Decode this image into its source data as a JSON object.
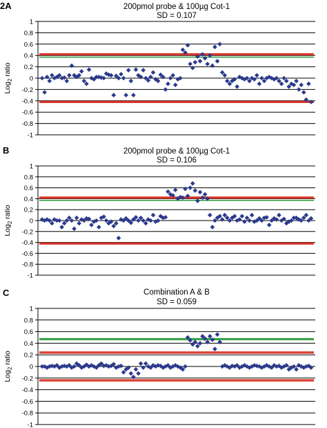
{
  "chart_data": [
    {
      "type": "scatter",
      "panel_label": "2A",
      "title": "200pmol probe & 100µg Cot-1",
      "subtitle": "SD = 0.107",
      "ylabel_main": "Log",
      "ylabel_sub": "2",
      "ylabel_tail": " ratio",
      "ylim": [
        -1,
        1
      ],
      "yticks": [
        "1",
        "0.8",
        "0.6",
        "0.4",
        "0.2",
        "0",
        "-0.2",
        "-0.4",
        "-0.6",
        "-0.8",
        "-1"
      ],
      "grid": true,
      "marker_color": "#2b3a8c",
      "threshold_lines": [
        {
          "value": 0.43,
          "color": "#d62b1f"
        },
        {
          "value": 0.41,
          "color": "#d62b1f"
        },
        {
          "value": 0.37,
          "color": "#3aa04a"
        },
        {
          "value": -0.41,
          "color": "#d62b1f"
        },
        {
          "value": -0.43,
          "color": "#d62b1f"
        }
      ],
      "values": [
        0.0,
        -0.25,
        0.02,
        -0.05,
        0.05,
        0.0,
        0.02,
        0.05,
        0.0,
        0.01,
        -0.05,
        0.05,
        0.22,
        0.05,
        0.02,
        0.05,
        0.12,
        -0.05,
        -0.1,
        0.15,
        0.0,
        -0.02,
        0.02,
        0.02,
        0.01,
        0.0,
        0.08,
        0.06,
        0.05,
        -0.3,
        0.04,
        0.0,
        0.07,
        0.0,
        -0.3,
        0.14,
        -0.05,
        -0.3,
        0.15,
        0.05,
        0.02,
        0.14,
        0.0,
        -0.04,
        0.02,
        0.1,
        -0.02,
        -0.05,
        0.06,
        0.02,
        -0.2,
        -0.1,
        0.0,
        0.05,
        -0.12,
        -0.02,
        0.0,
        0.5,
        0.45,
        0.58,
        0.25,
        0.18,
        0.28,
        0.38,
        0.3,
        0.42,
        0.35,
        0.25,
        0.4,
        0.22,
        0.55,
        0.3,
        0.6,
        0.1,
        0.05,
        -0.05,
        -0.1,
        -0.05,
        -0.02,
        -0.15,
        0.02,
        0.0,
        -0.02,
        0.0,
        -0.05,
        0.0,
        -0.02,
        0.05,
        -0.1,
        0.0,
        -0.05,
        0.0,
        0.02,
        0.0,
        -0.02,
        0.0,
        -0.05,
        -0.1,
        0.0,
        -0.05,
        -0.15,
        -0.1,
        -0.12,
        -0.05,
        -0.2,
        -0.12,
        -0.25,
        -0.38,
        -0.1,
        -0.42
      ]
    },
    {
      "type": "scatter",
      "panel_label": "B",
      "title": "200pmol probe & 100µg Cot-1",
      "subtitle": "SD = 0.106",
      "ylabel_main": "Log",
      "ylabel_sub": "2",
      "ylabel_tail": " ratio",
      "ylim": [
        -1,
        1
      ],
      "yticks": [
        "1",
        "0.8",
        "0.6",
        "0.4",
        "0.2",
        "0",
        "-0.2",
        "-0.4",
        "-0.6",
        "-0.8",
        "-1"
      ],
      "grid": true,
      "marker_color": "#2b3a8c",
      "threshold_lines": [
        {
          "value": 0.43,
          "color": "#d62b1f"
        },
        {
          "value": 0.41,
          "color": "#d62b1f"
        },
        {
          "value": 0.37,
          "color": "#3aa04a"
        },
        {
          "value": -0.41,
          "color": "#d62b1f"
        },
        {
          "value": -0.43,
          "color": "#d62b1f"
        }
      ],
      "values": [
        0.02,
        0.0,
        0.02,
        0.0,
        -0.05,
        0.02,
        0.0,
        0.0,
        -0.12,
        -0.05,
        0.0,
        0.05,
        0.0,
        -0.15,
        0.05,
        -0.05,
        0.02,
        0.0,
        0.04,
        0.03,
        -0.08,
        -0.02,
        0.0,
        -0.12,
        0.05,
        0.07,
        0.0,
        -0.05,
        -0.02,
        -0.1,
        -0.05,
        -0.32,
        0.02,
        0.0,
        0.04,
        0.0,
        -0.04,
        0.02,
        0.06,
        0.0,
        0.05,
        0.0,
        -0.05,
        0.02,
        0.0,
        0.1,
        -0.02,
        0.0,
        0.08,
        0.05,
        0.06,
        0.53,
        0.48,
        0.46,
        0.56,
        0.4,
        0.43,
        0.42,
        0.58,
        0.45,
        0.6,
        0.68,
        0.55,
        0.36,
        0.52,
        0.42,
        0.48,
        0.4,
        0.1,
        -0.12,
        0.0,
        0.05,
        0.08,
        0.02,
        0.1,
        0.05,
        0.0,
        0.05,
        0.08,
        0.0,
        0.02,
        0.08,
        -0.02,
        0.05,
        0.0,
        0.1,
        -0.02,
        0.0,
        0.04,
        0.0,
        0.05,
        0.06,
        -0.08,
        0.0,
        0.04,
        0.02,
        0.1,
        0.0,
        0.03,
        -0.05,
        -0.02,
        0.0,
        0.05,
        0.05,
        0.02,
        0.0,
        0.05,
        0.1,
        0.0,
        0.04
      ]
    },
    {
      "type": "scatter",
      "panel_label": "C",
      "title": "Combination A & B",
      "subtitle": "SD = 0.059",
      "ylabel_main": "Log",
      "ylabel_sub": "2",
      "ylabel_tail": " ratio",
      "ylim": [
        -1,
        1
      ],
      "yticks": [
        "1",
        "0.8",
        "0.6",
        "0.4",
        "0.2",
        "0",
        "-0.2",
        "-0.4",
        "-0.6",
        "-0.8",
        "-1"
      ],
      "grid": true,
      "marker_color": "#2b3a8c",
      "threshold_lines": [
        {
          "value": 0.48,
          "color": "#3aa04a"
        },
        {
          "value": 0.46,
          "color": "#3aa04a"
        },
        {
          "value": 0.25,
          "color": "#d62b1f"
        },
        {
          "value": 0.23,
          "color": "#d62b1f"
        },
        {
          "value": -0.23,
          "color": "#d62b1f"
        },
        {
          "value": -0.25,
          "color": "#d62b1f"
        }
      ],
      "values": [
        0.0,
        0.0,
        -0.02,
        0.0,
        0.01,
        0.0,
        0.02,
        -0.02,
        0.0,
        0.01,
        0.0,
        0.02,
        -0.02,
        0.0,
        0.05,
        0.02,
        -0.02,
        0.0,
        0.03,
        0.0,
        0.02,
        0.0,
        -0.02,
        0.02,
        0.05,
        0.01,
        0.02,
        0.0,
        0.01,
        0.04,
        -0.02,
        0.0,
        0.01,
        -0.1,
        -0.05,
        -0.02,
        -0.12,
        -0.18,
        -0.05,
        -0.12,
        0.05,
        -0.02,
        0.05,
        0.0,
        -0.02,
        0.02,
        0.0,
        0.02,
        0.01,
        -0.02,
        0.0,
        0.02,
        -0.02,
        0.0,
        0.02,
        0.0,
        -0.02,
        -0.05,
        0.0,
        0.5,
        0.45,
        0.38,
        0.42,
        0.35,
        0.4,
        0.52,
        0.48,
        0.42,
        0.52,
        0.46,
        0.3,
        0.55,
        0.42,
        0.0,
        0.02,
        0.0,
        -0.02,
        0.01,
        0.0,
        0.02,
        -0.02,
        0.0,
        0.02,
        0.0,
        -0.02,
        0.0,
        0.02,
        0.01,
        0.0,
        -0.02,
        0.0,
        0.02,
        0.0,
        -0.02,
        0.02,
        0.0,
        0.01,
        -0.02,
        0.0,
        0.02,
        -0.05,
        -0.02,
        0.0,
        -0.05,
        0.02,
        0.0,
        -0.02,
        0.0,
        0.01,
        -0.02
      ]
    }
  ]
}
